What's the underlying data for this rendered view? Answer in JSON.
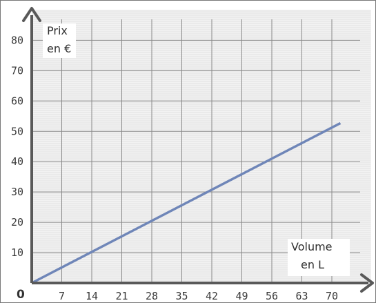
{
  "chart_data": {
    "type": "line",
    "x_ticks": [
      7,
      14,
      21,
      28,
      35,
      42,
      49,
      56,
      63,
      70
    ],
    "y_ticks": [
      10,
      20,
      30,
      40,
      50,
      60,
      70,
      80
    ],
    "origin_label": "0",
    "ylabel": [
      "Prix",
      "en €"
    ],
    "xlabel": [
      "Volume",
      "en L"
    ],
    "xlim": [
      0,
      72
    ],
    "ylim": [
      0,
      80
    ],
    "grid": true,
    "series": [
      {
        "x": [
          0,
          72
        ],
        "y": [
          0,
          52.7
        ]
      }
    ],
    "colors": {
      "line": "#6f86b8",
      "axis": "#595959",
      "grid": "#8a8a8a"
    }
  }
}
